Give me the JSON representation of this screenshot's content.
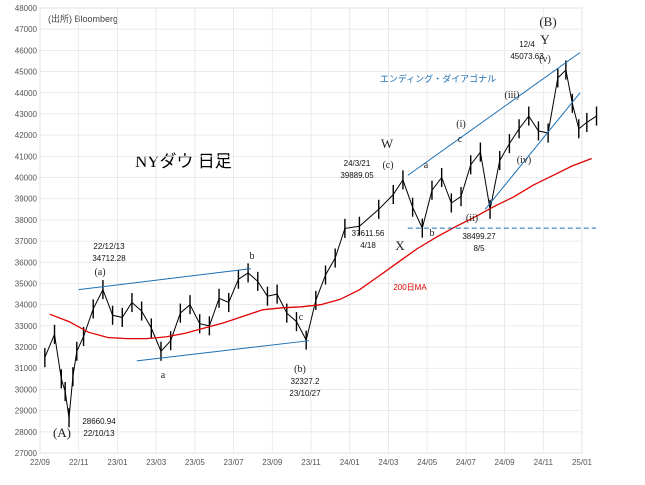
{
  "source": "(出所) Bloomberg",
  "chart_title": "NYダウ 日足",
  "chart_data": {
    "type": "line",
    "title": "NYダウ 日足",
    "xlabel": "",
    "ylabel": "",
    "ylim": [
      27000,
      48000
    ],
    "y_ticks": [
      27000,
      28000,
      29000,
      30000,
      31000,
      32000,
      33000,
      34000,
      35000,
      36000,
      37000,
      38000,
      39000,
      40000,
      41000,
      42000,
      43000,
      44000,
      45000,
      46000,
      47000,
      48000
    ],
    "x_ticks": [
      "22/09",
      "22/11",
      "23/01",
      "23/03",
      "23/05",
      "23/07",
      "23/09",
      "23/11",
      "24/01",
      "24/03",
      "24/05",
      "24/07",
      "24/09",
      "24/11",
      "25/01"
    ],
    "grid": true,
    "series": [
      {
        "name": "",
        "color": "#000000",
        "points": [
          [
            "22/09",
            31500
          ],
          [
            "22/09",
            32600
          ],
          [
            "22/10",
            30500
          ],
          [
            "22/10",
            29900
          ],
          [
            "22/10",
            28660.94
          ],
          [
            "22/10",
            30600
          ],
          [
            "22/10",
            31800
          ],
          [
            "22/11",
            32500
          ],
          [
            "22/11",
            33800
          ],
          [
            "22/12",
            34712.28
          ],
          [
            "22/12",
            33500
          ],
          [
            "23/01",
            33400
          ],
          [
            "23/01",
            34100
          ],
          [
            "23/02",
            33700
          ],
          [
            "23/02",
            32900
          ],
          [
            "23/03",
            31800
          ],
          [
            "23/03",
            32300
          ],
          [
            "23/04",
            33600
          ],
          [
            "23/04",
            34000
          ],
          [
            "23/05",
            33100
          ],
          [
            "23/05",
            33000
          ],
          [
            "23/06",
            34300
          ],
          [
            "23/06",
            34100
          ],
          [
            "23/07",
            35200
          ],
          [
            "23/07",
            35500
          ],
          [
            "23/08",
            35100
          ],
          [
            "23/08",
            34400
          ],
          [
            "23/09",
            34500
          ],
          [
            "23/09",
            33600
          ],
          [
            "23/10",
            33200
          ],
          [
            "23/10",
            32327.2
          ],
          [
            "23/11",
            34200
          ],
          [
            "23/11",
            35400
          ],
          [
            "23/12",
            36200
          ],
          [
            "23/12",
            37600
          ],
          [
            "24/01",
            37700
          ],
          [
            "24/02",
            38500
          ],
          [
            "24/03",
            39200
          ],
          [
            "24/03",
            39889.05
          ],
          [
            "24/04",
            38600
          ],
          [
            "24/04",
            37611.56
          ],
          [
            "24/05",
            39400
          ],
          [
            "24/05",
            40000
          ],
          [
            "24/06",
            38800
          ],
          [
            "24/06",
            39100
          ],
          [
            "24/07",
            40600
          ],
          [
            "24/07",
            41200
          ],
          [
            "24/08",
            38499.27
          ],
          [
            "24/08",
            40800
          ],
          [
            "24/09",
            41600
          ],
          [
            "24/09",
            42300
          ],
          [
            "24/10",
            42900
          ],
          [
            "24/10",
            42200
          ],
          [
            "24/11",
            42100
          ],
          [
            "24/11",
            44700
          ],
          [
            "24/12",
            45073.63
          ],
          [
            "24/12",
            43500
          ],
          [
            "24/12",
            42300
          ],
          [
            "25/01",
            42600
          ],
          [
            "25/01",
            42900
          ]
        ]
      },
      {
        "name": "200日MA",
        "color": "#e00000",
        "points": [
          [
            "22/09",
            33550
          ],
          [
            "22/10",
            33200
          ],
          [
            "22/11",
            32700
          ],
          [
            "22/12",
            32450
          ],
          [
            "23/01",
            32400
          ],
          [
            "23/02",
            32400
          ],
          [
            "23/03",
            32480
          ],
          [
            "23/04",
            32650
          ],
          [
            "23/05",
            32900
          ],
          [
            "23/06",
            33150
          ],
          [
            "23/07",
            33450
          ],
          [
            "23/08",
            33760
          ],
          [
            "23/09",
            33850
          ],
          [
            "23/10",
            33900
          ],
          [
            "23/11",
            34000
          ],
          [
            "23/12",
            34250
          ],
          [
            "24/01",
            34700
          ],
          [
            "24/02",
            35350
          ],
          [
            "24/03",
            36000
          ],
          [
            "24/04",
            36650
          ],
          [
            "24/05",
            37200
          ],
          [
            "24/06",
            37700
          ],
          [
            "24/07",
            38150
          ],
          [
            "24/08",
            38650
          ],
          [
            "24/09",
            39100
          ],
          [
            "24/10",
            39650
          ],
          [
            "24/11",
            40100
          ],
          [
            "24/12",
            40550
          ],
          [
            "25/01",
            40900
          ]
        ]
      }
    ],
    "support_line": {
      "value": 37611.56,
      "style": "dashed"
    },
    "trendlines": [
      {
        "from": [
          "22/11",
          34712.28
        ],
        "to": [
          "23/07",
          35700
        ]
      },
      {
        "from": [
          "23/02",
          31350
        ],
        "to": [
          "23/10",
          32300
        ]
      },
      {
        "from": [
          "24/04",
          40100
        ],
        "to": [
          "24/12",
          45900
        ]
      },
      {
        "from": [
          "24/08",
          38500
        ],
        "to": [
          "24/12",
          44000
        ]
      }
    ],
    "annotations": {
      "channel_label": "エンディング・ダイアゴナル",
      "ma_label": "200日MA",
      "wave_labels": [
        "(A)",
        "(a)",
        "a",
        "b",
        "(b)",
        "c",
        "W",
        "(c)",
        "X",
        "a",
        "b",
        "c",
        "(i)",
        "(ii)",
        "(iii)",
        "(iv)",
        "(v)",
        "Y",
        "(B)"
      ],
      "point_labels": [
        {
          "value": "28660.94",
          "date": "22/10/13"
        },
        {
          "value": "34712.28",
          "date": "22/12/13"
        },
        {
          "value": "32327.2",
          "date": "23/10/27"
        },
        {
          "value": "39889.05",
          "date": "24/3/21"
        },
        {
          "value": "37611.56",
          "date": "4/18"
        },
        {
          "value": "38499.27",
          "date": "8/5"
        },
        {
          "value": "45073.63",
          "date": "12/4"
        }
      ]
    }
  }
}
